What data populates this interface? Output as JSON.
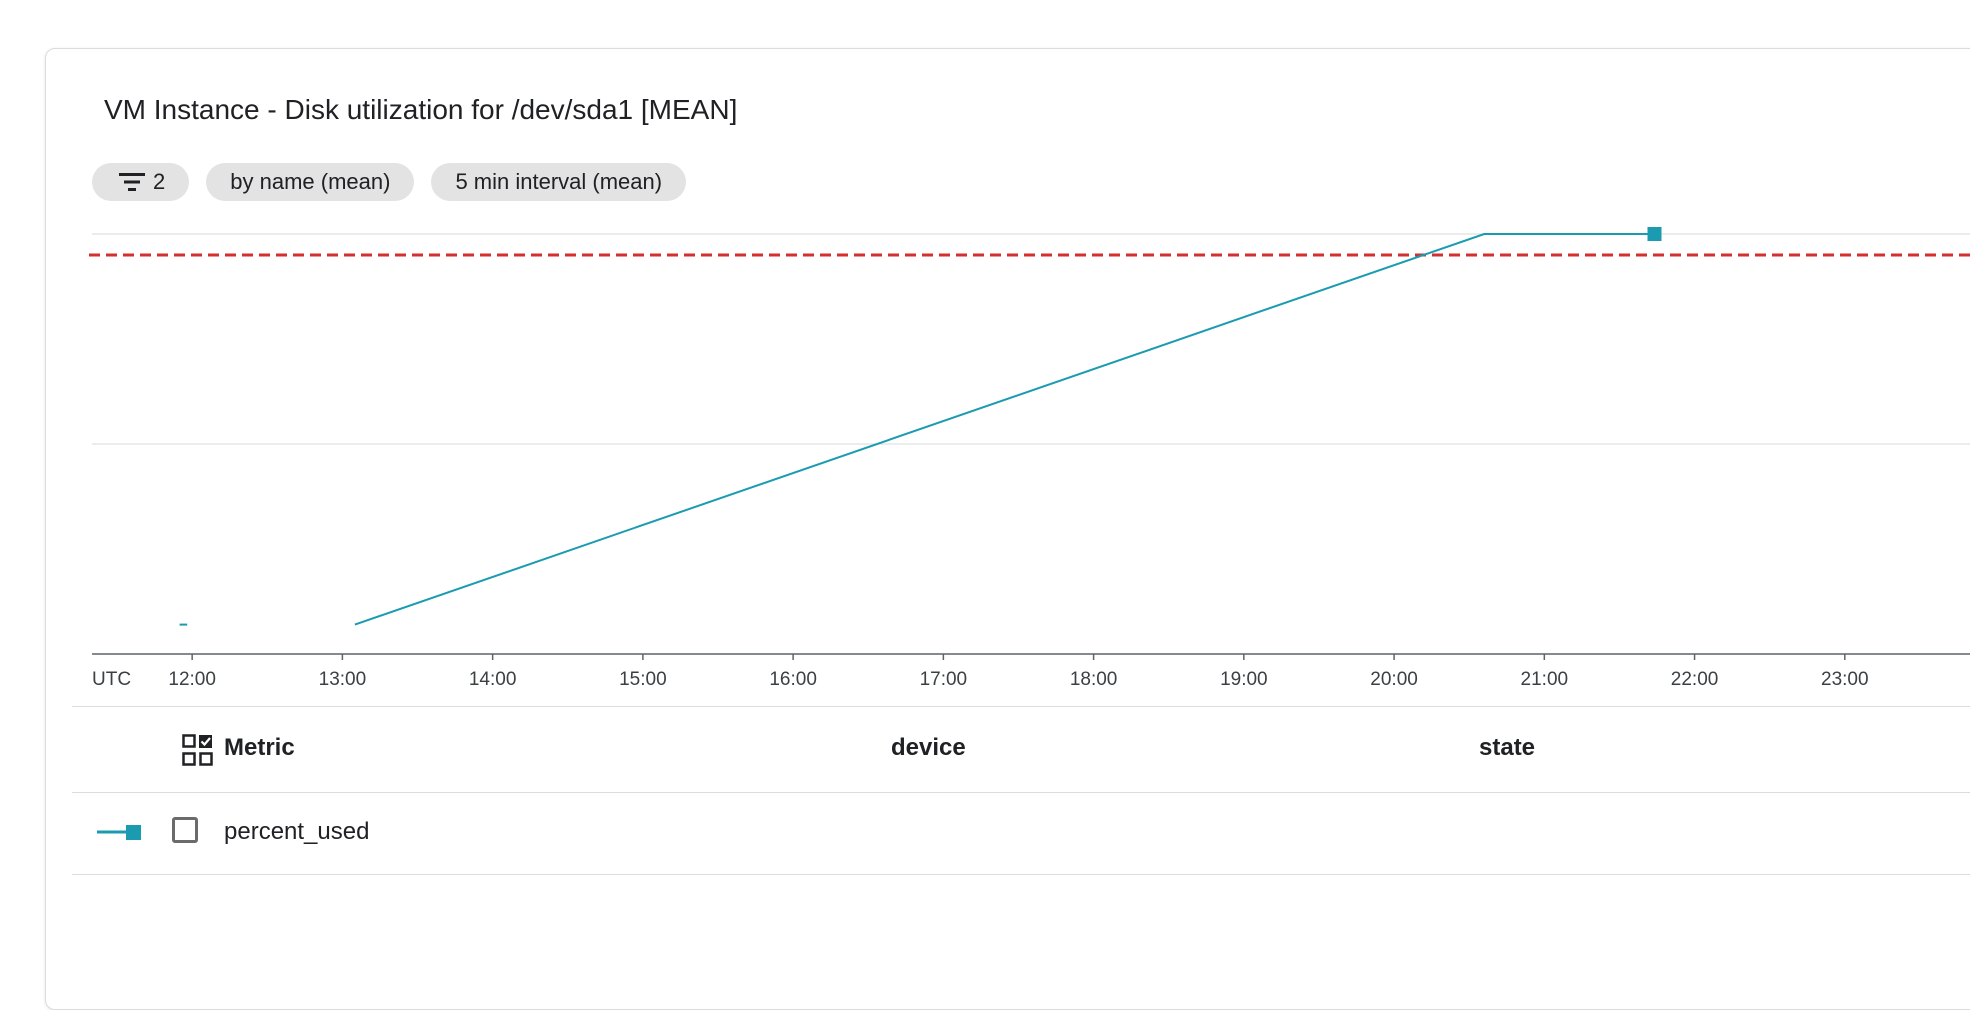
{
  "title": "VM Instance - Disk utilization for /dev/sda1 [MEAN]",
  "chips": {
    "filter_count": "2",
    "group_by": "by name (mean)",
    "interval": "5 min interval (mean)"
  },
  "colors": {
    "series": "#1a9bb0",
    "threshold": "#d32f2f",
    "axis": "#5f6368",
    "grid": "#e6e6e6"
  },
  "icons": {
    "filter": "filter-icon",
    "metric": "checklist-grid-icon"
  },
  "chart_data": {
    "type": "line",
    "timezone_label": "UTC",
    "x_tick_labels": [
      "12:00",
      "13:00",
      "14:00",
      "15:00",
      "16:00",
      "17:00",
      "18:00",
      "19:00",
      "20:00",
      "21:00",
      "22:00",
      "23:00"
    ],
    "xlim": [
      "11:20",
      "23:50"
    ],
    "ylim": [
      0,
      1
    ],
    "y_tick_labels": [],
    "grid": true,
    "threshold": {
      "value": 0.95,
      "style": "dashed"
    },
    "series": [
      {
        "name": "percent_used",
        "segments": [
          [
            [
              "11:55",
              0.07
            ],
            [
              "11:58",
              0.07
            ]
          ],
          [
            [
              "13:05",
              0.07
            ],
            [
              "20:36",
              1.0
            ],
            [
              "21:44",
              1.0
            ]
          ]
        ]
      }
    ]
  },
  "table": {
    "headers": {
      "metric": "Metric",
      "device": "device",
      "state": "state"
    },
    "rows": [
      {
        "metric": "percent_used",
        "device": "",
        "state": ""
      }
    ]
  }
}
